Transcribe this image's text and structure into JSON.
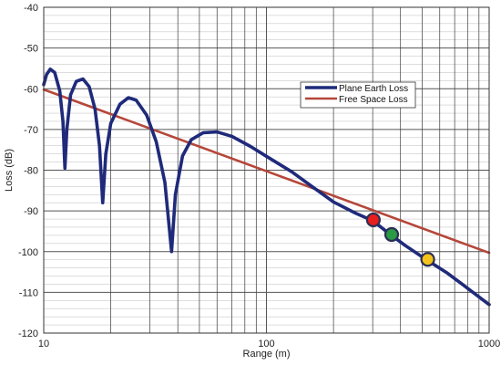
{
  "chart_data": {
    "type": "line",
    "xlabel": "Range (m)",
    "ylabel": "Loss (dB)",
    "x_scale": "log",
    "xlim": [
      10,
      1000
    ],
    "ylim": [
      -120,
      -40
    ],
    "x_major_ticks": [
      10,
      100,
      1000
    ],
    "x_tick_labels": [
      "10",
      "100",
      "1000"
    ],
    "y_ticks": [
      -40,
      -50,
      -60,
      -70,
      -80,
      -90,
      -100,
      -110,
      -120
    ],
    "y_tick_labels": [
      "-40",
      "-50",
      "-60",
      "-70",
      "-80",
      "-90",
      "-100",
      "-110",
      "-120"
    ],
    "grid": true,
    "legend_position": "upper-right",
    "series": [
      {
        "name": "Plane Earth Loss",
        "color": "#1f2a7a",
        "points": [
          [
            10,
            -59
          ],
          [
            10.3,
            -56.5
          ],
          [
            10.7,
            -55.2
          ],
          [
            11.2,
            -56
          ],
          [
            11.8,
            -60.5
          ],
          [
            12.2,
            -68
          ],
          [
            12.45,
            -79.5
          ],
          [
            12.7,
            -70
          ],
          [
            13.2,
            -61.5
          ],
          [
            14,
            -58.2
          ],
          [
            15,
            -57.6
          ],
          [
            16,
            -59.5
          ],
          [
            17,
            -65
          ],
          [
            17.8,
            -74
          ],
          [
            18.4,
            -88
          ],
          [
            19,
            -76
          ],
          [
            20,
            -68.5
          ],
          [
            22,
            -63.8
          ],
          [
            24,
            -62.2
          ],
          [
            26,
            -62.8
          ],
          [
            29,
            -66.5
          ],
          [
            32,
            -73
          ],
          [
            35,
            -83
          ],
          [
            37.5,
            -100
          ],
          [
            39,
            -86
          ],
          [
            42,
            -76.5
          ],
          [
            46,
            -72.5
          ],
          [
            52,
            -70.8
          ],
          [
            60,
            -70.6
          ],
          [
            70,
            -71.7
          ],
          [
            85,
            -74.2
          ],
          [
            100,
            -76.6
          ],
          [
            130,
            -80.4
          ],
          [
            160,
            -84
          ],
          [
            200,
            -87.8
          ],
          [
            250,
            -90.5
          ],
          [
            300,
            -92.4
          ],
          [
            360,
            -95.8
          ],
          [
            420,
            -98.5
          ],
          [
            520,
            -101.9
          ],
          [
            650,
            -105.3
          ],
          [
            800,
            -109
          ],
          [
            1000,
            -113
          ]
        ]
      },
      {
        "name": "Free Space Loss",
        "color": "#b5473a",
        "points": [
          [
            10,
            -60.2
          ],
          [
            1000,
            -100.3
          ]
        ]
      }
    ],
    "markers": [
      {
        "x": 302,
        "y": -92.2,
        "color": "#e81d1d"
      },
      {
        "x": 365,
        "y": -95.8,
        "color": "#2a9a45"
      },
      {
        "x": 530,
        "y": -101.9,
        "color": "#f5c21b"
      }
    ]
  }
}
